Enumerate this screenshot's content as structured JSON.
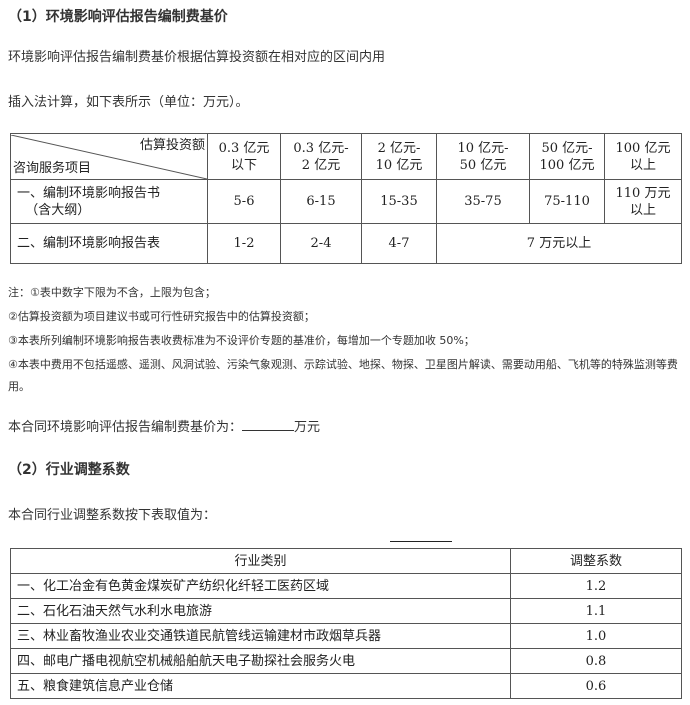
{
  "section1": {
    "heading": "（1）环境影响评估报告编制费基价",
    "para1": "环境影响评估报告编制费基价根据估算投资额在相对应的区间内用",
    "para2": "插入法计算，如下表所示（单位：万元）。"
  },
  "table1": {
    "corner_top": "估算投资额",
    "corner_bottom": "咨询服务项目",
    "columns": [
      [
        "0.3 亿元",
        "以下"
      ],
      [
        "0.3 亿元-",
        "2 亿元"
      ],
      [
        "2 亿元-",
        "10 亿元"
      ],
      [
        "10 亿元-",
        "50 亿元"
      ],
      [
        "50 亿元-",
        "100 亿元"
      ],
      [
        "100 亿元",
        "以上"
      ]
    ],
    "rows": [
      {
        "label": [
          "一、编制环境影响报告书",
          "（含大纲）"
        ],
        "values": [
          "5-6",
          "6-15",
          "15-35",
          "35-75",
          "75-110"
        ],
        "last": [
          "110 万元",
          "以上"
        ]
      },
      {
        "label": "二、编制环境影响报告表",
        "values": [
          "1-2",
          "2-4",
          "4-7"
        ],
        "merged": "7 万元以上"
      }
    ]
  },
  "notes": [
    "注：①表中数字下限为不含，上限为包含；",
    "②估算投资额为项目建议书或可行性研究报告中的估算投资额；",
    "③本表所列编制环境影响报告表收费标准为不设评价专题的基准价，每增加一个专题加收 50%；",
    "④本表中费用不包括遥感、遥测、风洞试验、污染气象观测、示踪试验、地探、物探、卫星图片解读、需要动用船、飞机等的特殊监测等费用。"
  ],
  "base_price_line": {
    "prefix": "本合同环境影响评估报告编制费基价为：",
    "suffix": "万元"
  },
  "section2": {
    "heading": "（2）行业调整系数",
    "para": "本合同行业调整系数按下表取值为："
  },
  "table2": {
    "headers": [
      "行业类别",
      "调整系数"
    ],
    "rows": [
      [
        "一、化工冶金有色黄金煤炭矿产纺织化纤轻工医药区域",
        "1.2"
      ],
      [
        "二、石化石油天然气水利水电旅游",
        "1.1"
      ],
      [
        "三、林业畜牧渔业农业交通铁道民航管线运输建材市政烟草兵器",
        "1.0"
      ],
      [
        "四、邮电广播电视航空机械船舶航天电子勘探社会服务火电",
        "0.8"
      ],
      [
        "五、粮食建筑信息产业仓储",
        "0.6"
      ]
    ]
  }
}
